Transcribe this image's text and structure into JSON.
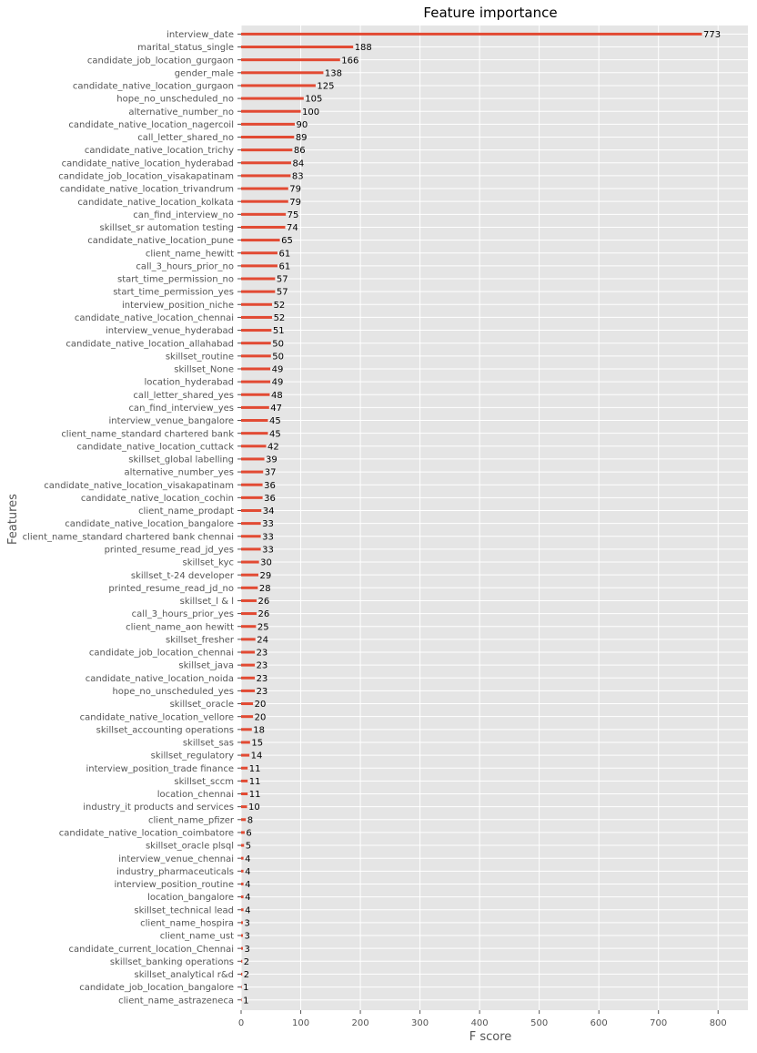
{
  "chart_data": {
    "type": "bar",
    "orientation": "horizontal",
    "title": "Feature importance",
    "xlabel": "F score",
    "ylabel": "Features",
    "xlim": [
      0,
      850
    ],
    "xticks": [
      0,
      100,
      200,
      300,
      400,
      500,
      600,
      700,
      800
    ],
    "grid": true,
    "bar_color": "#E24A33",
    "background_color": "#E5E5E5",
    "grid_color": "#FFFFFF",
    "categories": [
      "interview_date",
      "marital_status_single",
      "candidate_job_location_gurgaon",
      "gender_male",
      "candidate_native_location_gurgaon",
      "hope_no_unscheduled_no",
      "alternative_number_no",
      "candidate_native_location_nagercoil",
      "call_letter_shared_no",
      "candidate_native_location_trichy",
      "candidate_native_location_hyderabad",
      "candidate_job_location_visakapatinam",
      "candidate_native_location_trivandrum",
      "candidate_native_location_kolkata",
      "can_find_interview_no",
      "skillset_sr automation testing",
      "candidate_native_location_pune",
      "client_name_hewitt",
      "call_3_hours_prior_no",
      "start_time_permission_no",
      "start_time_permission_yes",
      "interview_position_niche",
      "candidate_native_location_chennai",
      "interview_venue_hyderabad",
      "candidate_native_location_allahabad",
      "skillset_routine",
      "skillset_None",
      "location_hyderabad",
      "call_letter_shared_yes",
      "can_find_interview_yes",
      "interview_venue_bangalore",
      "client_name_standard chartered bank",
      "candidate_native_location_cuttack",
      "skillset_global labelling",
      "alternative_number_yes",
      "candidate_native_location_visakapatinam",
      "candidate_native_location_cochin",
      "client_name_prodapt",
      "candidate_native_location_bangalore",
      "client_name_standard chartered bank chennai",
      "printed_resume_read_jd_yes",
      "skillset_kyc",
      "skillset_t-24 developer",
      "printed_resume_read_jd_no",
      "skillset_l & l",
      "call_3_hours_prior_yes",
      "client_name_aon hewitt",
      "skillset_fresher",
      "candidate_job_location_chennai",
      "skillset_java",
      "candidate_native_location_noida",
      "hope_no_unscheduled_yes",
      "skillset_oracle",
      "candidate_native_location_vellore",
      "skillset_accounting operations",
      "skillset_sas",
      "skillset_regulatory",
      "interview_position_trade finance",
      "skillset_sccm",
      "location_chennai",
      "industry_it products and services",
      "client_name_pfizer",
      "candidate_native_location_coimbatore",
      "skillset_oracle plsql",
      "interview_venue_chennai",
      "industry_pharmaceuticals",
      "interview_position_routine",
      "location_bangalore",
      "skillset_technical lead",
      "client_name_hospira",
      "client_name_ust",
      "candidate_current_location_Chennai",
      "skillset_banking operations",
      "skillset_analytical r&d",
      "candidate_job_location_bangalore",
      "client_name_astrazeneca"
    ],
    "values": [
      773,
      188,
      166,
      138,
      125,
      105,
      100,
      90,
      89,
      86,
      84,
      83,
      79,
      79,
      75,
      74,
      65,
      61,
      61,
      57,
      57,
      52,
      52,
      51,
      50,
      50,
      49,
      49,
      48,
      47,
      45,
      45,
      42,
      39,
      37,
      36,
      36,
      34,
      33,
      33,
      33,
      30,
      29,
      28,
      26,
      26,
      25,
      24,
      23,
      23,
      23,
      23,
      20,
      20,
      18,
      15,
      14,
      11,
      11,
      11,
      10,
      8,
      6,
      5,
      4,
      4,
      4,
      4,
      4,
      3,
      3,
      3,
      2,
      2,
      1,
      1
    ]
  }
}
